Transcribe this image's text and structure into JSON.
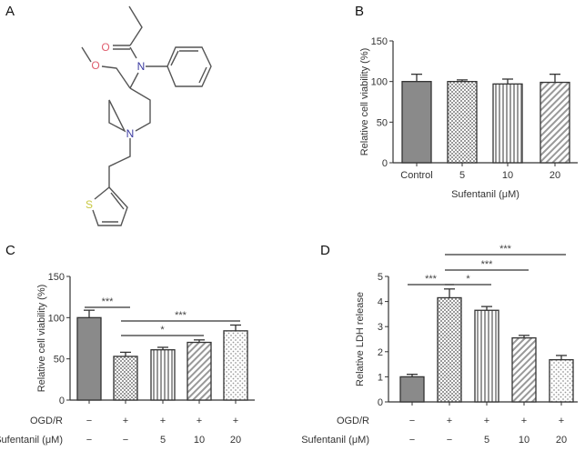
{
  "panels": {
    "A": "A",
    "B": "B",
    "C": "C",
    "D": "D"
  },
  "structure": {
    "atoms": {
      "oxygen_carbonyl": "O",
      "oxygen_ether": "O",
      "nitrogen_amide": "N",
      "nitrogen_piperidine": "N",
      "sulfur": "S"
    },
    "colors": {
      "bond": "#555555",
      "oxygen": "#e06070",
      "nitrogen": "#3a3aa0",
      "sulfur": "#c8c840"
    }
  },
  "chart_data": [
    {
      "panel": "B",
      "type": "bar",
      "categories": [
        "Control",
        "5",
        "10",
        "20"
      ],
      "values": [
        100,
        100,
        97,
        99
      ],
      "errors": [
        9,
        2,
        6,
        10
      ],
      "patterns": [
        "solid-gray",
        "checker",
        "vertical-stripes",
        "diagonal-stripes"
      ],
      "xlabel": "Sufentanil (μM)",
      "ylabel": "Relative cell viability (%)",
      "ylim": [
        0,
        150
      ],
      "yticks": [
        "0",
        "50",
        "100",
        "150"
      ],
      "grid": false
    },
    {
      "panel": "C",
      "type": "bar",
      "row_labels": [
        "OGD/R",
        "Sufentanil (μM)"
      ],
      "ogdr": [
        "−",
        "+",
        "+",
        "+",
        "+"
      ],
      "sufentanil": [
        "−",
        "−",
        "5",
        "10",
        "20"
      ],
      "values": [
        100,
        53,
        61,
        70,
        84
      ],
      "errors": [
        9,
        5,
        3,
        3,
        7
      ],
      "patterns": [
        "solid-gray",
        "checker",
        "vertical-stripes",
        "diagonal-stripes",
        "dots"
      ],
      "ylabel": "Relative cell viability (%)",
      "ylim": [
        0,
        150
      ],
      "yticks": [
        "0",
        "50",
        "100",
        "150"
      ],
      "significance": [
        {
          "from": 0,
          "to": 1,
          "label": "***"
        },
        {
          "from": 1,
          "to": 4,
          "label": "***"
        },
        {
          "from": 1,
          "to": 3,
          "label": "*"
        }
      ],
      "grid": false
    },
    {
      "panel": "D",
      "type": "bar",
      "row_labels": [
        "OGD/R",
        "Sufentanil (μM)"
      ],
      "ogdr": [
        "−",
        "+",
        "+",
        "+",
        "+"
      ],
      "sufentanil": [
        "−",
        "−",
        "5",
        "10",
        "20"
      ],
      "values": [
        1.0,
        4.15,
        3.65,
        2.55,
        1.68
      ],
      "errors": [
        0.1,
        0.35,
        0.15,
        0.1,
        0.17
      ],
      "patterns": [
        "solid-gray",
        "checker",
        "vertical-stripes",
        "diagonal-stripes",
        "dots"
      ],
      "ylabel": "Relative LDH release",
      "ylim": [
        0,
        5
      ],
      "yticks": [
        "0",
        "1",
        "2",
        "3",
        "4",
        "5"
      ],
      "significance": [
        {
          "from": 0,
          "to": 1,
          "label": "***"
        },
        {
          "from": 1,
          "to": 2,
          "label": "*"
        },
        {
          "from": 1,
          "to": 3,
          "label": "***"
        },
        {
          "from": 1,
          "to": 4,
          "label": "***"
        }
      ],
      "grid": false
    }
  ]
}
